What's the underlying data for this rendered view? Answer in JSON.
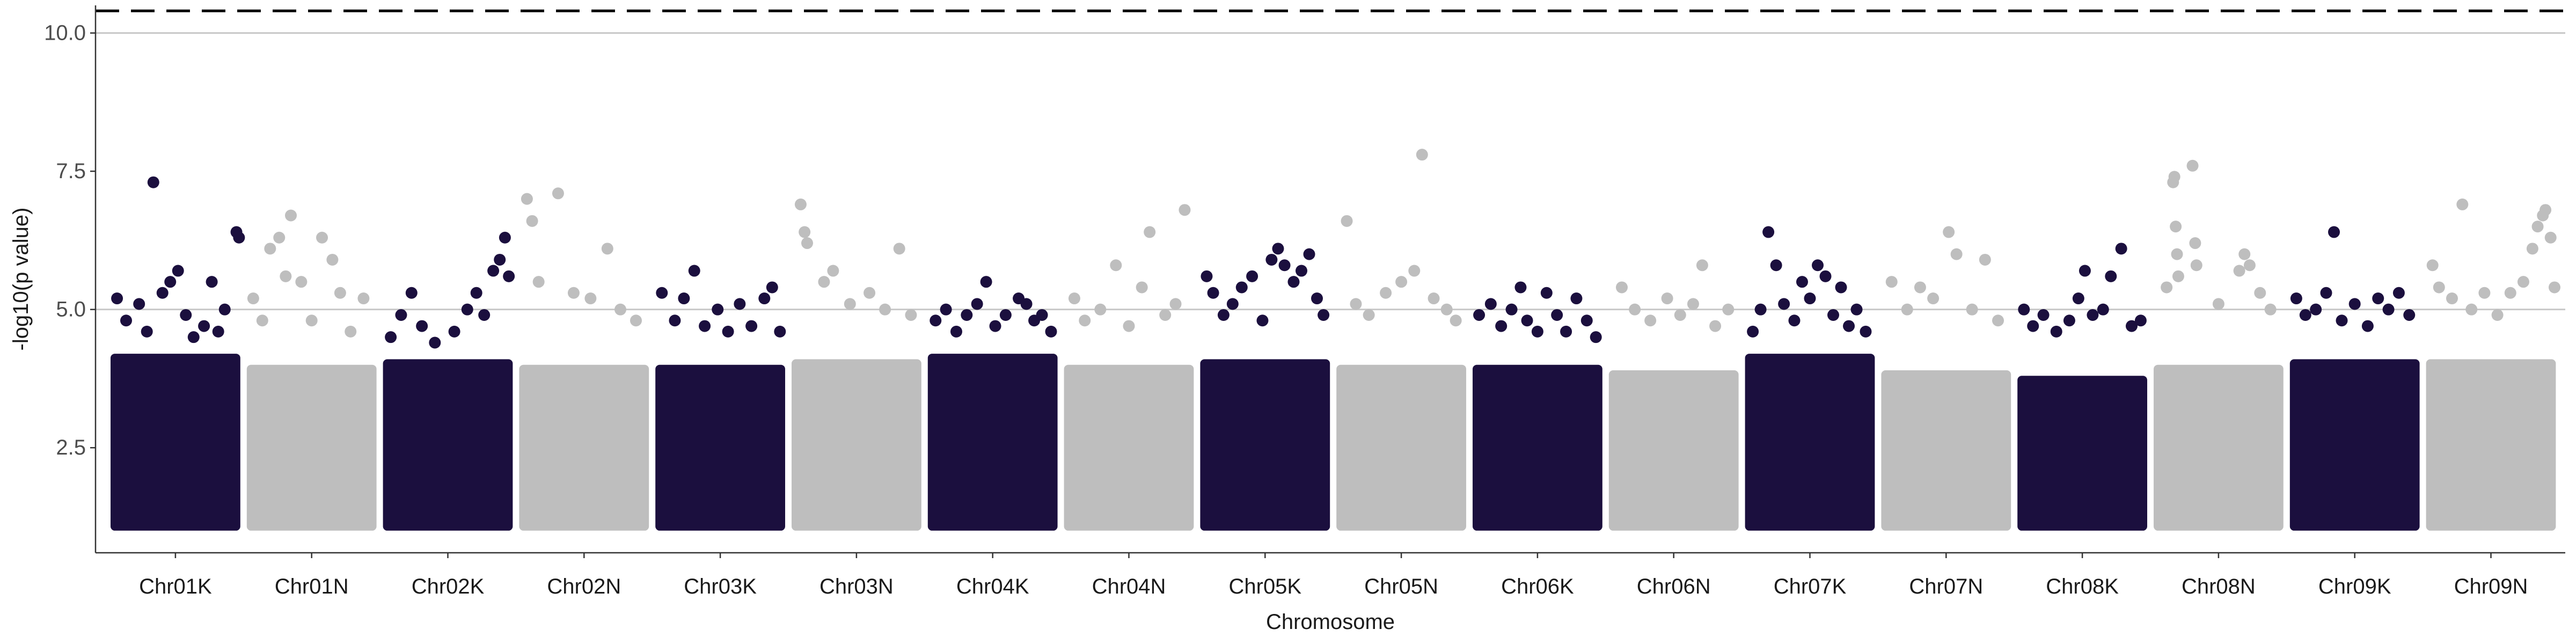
{
  "chart_data": {
    "type": "scatter",
    "title": "",
    "xlabel": "Chromosome",
    "ylabel": "-log10(p value)",
    "ylim": [
      0.6,
      10.5
    ],
    "y_ticks": [
      2.5,
      5.0,
      7.5,
      10.0
    ],
    "y_tick_labels": [
      "2.5",
      "5.0",
      "7.5",
      "10.0"
    ],
    "grid": "horizontal-major",
    "reference_lines": [
      {
        "y": 5.0,
        "style": "solid",
        "color": "#c8c8c8"
      },
      {
        "y": 10.0,
        "style": "solid",
        "color": "#c8c8c8"
      },
      {
        "y": 10.4,
        "style": "dashed",
        "color": "#000000"
      }
    ],
    "colors": {
      "odd": "#1b0f3e",
      "even": "#bebebe"
    },
    "chromosomes": [
      "Chr01K",
      "Chr01N",
      "Chr02K",
      "Chr02N",
      "Chr03K",
      "Chr03N",
      "Chr04K",
      "Chr04N",
      "Chr05K",
      "Chr05N",
      "Chr06K",
      "Chr06N",
      "Chr07K",
      "Chr07N",
      "Chr08K",
      "Chr08N",
      "Chr09K",
      "Chr09N"
    ],
    "band_top": [
      4.2,
      4.0,
      4.1,
      4.0,
      4.0,
      4.1,
      4.2,
      4.0,
      4.1,
      4.0,
      4.0,
      3.9,
      4.2,
      3.9,
      3.8,
      4.0,
      4.1,
      4.1
    ],
    "points": [
      {
        "chr": "Chr01K",
        "pos": 0.05,
        "y": 5.2
      },
      {
        "chr": "Chr01K",
        "pos": 0.12,
        "y": 4.8
      },
      {
        "chr": "Chr01K",
        "pos": 0.22,
        "y": 5.1
      },
      {
        "chr": "Chr01K",
        "pos": 0.28,
        "y": 4.6
      },
      {
        "chr": "Chr01K",
        "pos": 0.33,
        "y": 7.3
      },
      {
        "chr": "Chr01K",
        "pos": 0.4,
        "y": 5.3
      },
      {
        "chr": "Chr01K",
        "pos": 0.46,
        "y": 5.5
      },
      {
        "chr": "Chr01K",
        "pos": 0.52,
        "y": 5.7
      },
      {
        "chr": "Chr01K",
        "pos": 0.58,
        "y": 4.9
      },
      {
        "chr": "Chr01K",
        "pos": 0.64,
        "y": 4.5
      },
      {
        "chr": "Chr01K",
        "pos": 0.72,
        "y": 4.7
      },
      {
        "chr": "Chr01K",
        "pos": 0.78,
        "y": 5.5
      },
      {
        "chr": "Chr01K",
        "pos": 0.83,
        "y": 4.6
      },
      {
        "chr": "Chr01K",
        "pos": 0.88,
        "y": 5.0
      },
      {
        "chr": "Chr01K",
        "pos": 0.97,
        "y": 6.4
      },
      {
        "chr": "Chr01K",
        "pos": 0.99,
        "y": 6.3
      },
      {
        "chr": "Chr01N",
        "pos": 0.05,
        "y": 5.2
      },
      {
        "chr": "Chr01N",
        "pos": 0.12,
        "y": 4.8
      },
      {
        "chr": "Chr01N",
        "pos": 0.18,
        "y": 6.1
      },
      {
        "chr": "Chr01N",
        "pos": 0.25,
        "y": 6.3
      },
      {
        "chr": "Chr01N",
        "pos": 0.3,
        "y": 5.6
      },
      {
        "chr": "Chr01N",
        "pos": 0.34,
        "y": 6.7
      },
      {
        "chr": "Chr01N",
        "pos": 0.42,
        "y": 5.5
      },
      {
        "chr": "Chr01N",
        "pos": 0.5,
        "y": 4.8
      },
      {
        "chr": "Chr01N",
        "pos": 0.58,
        "y": 6.3
      },
      {
        "chr": "Chr01N",
        "pos": 0.66,
        "y": 5.9
      },
      {
        "chr": "Chr01N",
        "pos": 0.72,
        "y": 5.3
      },
      {
        "chr": "Chr01N",
        "pos": 0.8,
        "y": 4.6
      },
      {
        "chr": "Chr01N",
        "pos": 0.9,
        "y": 5.2
      },
      {
        "chr": "Chr02K",
        "pos": 0.06,
        "y": 4.5
      },
      {
        "chr": "Chr02K",
        "pos": 0.14,
        "y": 4.9
      },
      {
        "chr": "Chr02K",
        "pos": 0.22,
        "y": 5.3
      },
      {
        "chr": "Chr02K",
        "pos": 0.3,
        "y": 4.7
      },
      {
        "chr": "Chr02K",
        "pos": 0.4,
        "y": 4.4
      },
      {
        "chr": "Chr02K",
        "pos": 0.55,
        "y": 4.6
      },
      {
        "chr": "Chr02K",
        "pos": 0.65,
        "y": 5.0
      },
      {
        "chr": "Chr02K",
        "pos": 0.72,
        "y": 5.3
      },
      {
        "chr": "Chr02K",
        "pos": 0.78,
        "y": 4.9
      },
      {
        "chr": "Chr02K",
        "pos": 0.85,
        "y": 5.7
      },
      {
        "chr": "Chr02K",
        "pos": 0.9,
        "y": 5.9
      },
      {
        "chr": "Chr02K",
        "pos": 0.94,
        "y": 6.3
      },
      {
        "chr": "Chr02K",
        "pos": 0.97,
        "y": 5.6
      },
      {
        "chr": "Chr02N",
        "pos": 0.06,
        "y": 7.0
      },
      {
        "chr": "Chr02N",
        "pos": 0.1,
        "y": 6.6
      },
      {
        "chr": "Chr02N",
        "pos": 0.15,
        "y": 5.5
      },
      {
        "chr": "Chr02N",
        "pos": 0.3,
        "y": 7.1
      },
      {
        "chr": "Chr02N",
        "pos": 0.42,
        "y": 5.3
      },
      {
        "chr": "Chr02N",
        "pos": 0.55,
        "y": 5.2
      },
      {
        "chr": "Chr02N",
        "pos": 0.68,
        "y": 6.1
      },
      {
        "chr": "Chr02N",
        "pos": 0.78,
        "y": 5.0
      },
      {
        "chr": "Chr02N",
        "pos": 0.9,
        "y": 4.8
      },
      {
        "chr": "Chr03K",
        "pos": 0.05,
        "y": 5.3
      },
      {
        "chr": "Chr03K",
        "pos": 0.15,
        "y": 4.8
      },
      {
        "chr": "Chr03K",
        "pos": 0.22,
        "y": 5.2
      },
      {
        "chr": "Chr03K",
        "pos": 0.3,
        "y": 5.7
      },
      {
        "chr": "Chr03K",
        "pos": 0.38,
        "y": 4.7
      },
      {
        "chr": "Chr03K",
        "pos": 0.48,
        "y": 5.0
      },
      {
        "chr": "Chr03K",
        "pos": 0.56,
        "y": 4.6
      },
      {
        "chr": "Chr03K",
        "pos": 0.65,
        "y": 5.1
      },
      {
        "chr": "Chr03K",
        "pos": 0.74,
        "y": 4.7
      },
      {
        "chr": "Chr03K",
        "pos": 0.84,
        "y": 5.2
      },
      {
        "chr": "Chr03K",
        "pos": 0.9,
        "y": 5.4
      },
      {
        "chr": "Chr03K",
        "pos": 0.96,
        "y": 4.6
      },
      {
        "chr": "Chr03N",
        "pos": 0.07,
        "y": 6.9
      },
      {
        "chr": "Chr03N",
        "pos": 0.1,
        "y": 6.4
      },
      {
        "chr": "Chr03N",
        "pos": 0.12,
        "y": 6.2
      },
      {
        "chr": "Chr03N",
        "pos": 0.25,
        "y": 5.5
      },
      {
        "chr": "Chr03N",
        "pos": 0.32,
        "y": 5.7
      },
      {
        "chr": "Chr03N",
        "pos": 0.45,
        "y": 5.1
      },
      {
        "chr": "Chr03N",
        "pos": 0.6,
        "y": 5.3
      },
      {
        "chr": "Chr03N",
        "pos": 0.72,
        "y": 5.0
      },
      {
        "chr": "Chr03N",
        "pos": 0.83,
        "y": 6.1
      },
      {
        "chr": "Chr03N",
        "pos": 0.92,
        "y": 4.9
      },
      {
        "chr": "Chr04K",
        "pos": 0.06,
        "y": 4.8
      },
      {
        "chr": "Chr04K",
        "pos": 0.14,
        "y": 5.0
      },
      {
        "chr": "Chr04K",
        "pos": 0.22,
        "y": 4.6
      },
      {
        "chr": "Chr04K",
        "pos": 0.3,
        "y": 4.9
      },
      {
        "chr": "Chr04K",
        "pos": 0.38,
        "y": 5.1
      },
      {
        "chr": "Chr04K",
        "pos": 0.45,
        "y": 5.5
      },
      {
        "chr": "Chr04K",
        "pos": 0.52,
        "y": 4.7
      },
      {
        "chr": "Chr04K",
        "pos": 0.6,
        "y": 4.9
      },
      {
        "chr": "Chr04K",
        "pos": 0.7,
        "y": 5.2
      },
      {
        "chr": "Chr04K",
        "pos": 0.76,
        "y": 5.1
      },
      {
        "chr": "Chr04K",
        "pos": 0.82,
        "y": 4.8
      },
      {
        "chr": "Chr04K",
        "pos": 0.88,
        "y": 4.9
      },
      {
        "chr": "Chr04K",
        "pos": 0.95,
        "y": 4.6
      },
      {
        "chr": "Chr04N",
        "pos": 0.08,
        "y": 5.2
      },
      {
        "chr": "Chr04N",
        "pos": 0.16,
        "y": 4.8
      },
      {
        "chr": "Chr04N",
        "pos": 0.28,
        "y": 5.0
      },
      {
        "chr": "Chr04N",
        "pos": 0.4,
        "y": 5.8
      },
      {
        "chr": "Chr04N",
        "pos": 0.5,
        "y": 4.7
      },
      {
        "chr": "Chr04N",
        "pos": 0.6,
        "y": 5.4
      },
      {
        "chr": "Chr04N",
        "pos": 0.66,
        "y": 6.4
      },
      {
        "chr": "Chr04N",
        "pos": 0.78,
        "y": 4.9
      },
      {
        "chr": "Chr04N",
        "pos": 0.86,
        "y": 5.1
      },
      {
        "chr": "Chr04N",
        "pos": 0.93,
        "y": 6.8
      },
      {
        "chr": "Chr05K",
        "pos": 0.05,
        "y": 5.6
      },
      {
        "chr": "Chr05K",
        "pos": 0.1,
        "y": 5.3
      },
      {
        "chr": "Chr05K",
        "pos": 0.18,
        "y": 4.9
      },
      {
        "chr": "Chr05K",
        "pos": 0.25,
        "y": 5.1
      },
      {
        "chr": "Chr05K",
        "pos": 0.32,
        "y": 5.4
      },
      {
        "chr": "Chr05K",
        "pos": 0.4,
        "y": 5.6
      },
      {
        "chr": "Chr05K",
        "pos": 0.48,
        "y": 4.8
      },
      {
        "chr": "Chr05K",
        "pos": 0.55,
        "y": 5.9
      },
      {
        "chr": "Chr05K",
        "pos": 0.6,
        "y": 6.1
      },
      {
        "chr": "Chr05K",
        "pos": 0.65,
        "y": 5.8
      },
      {
        "chr": "Chr05K",
        "pos": 0.72,
        "y": 5.5
      },
      {
        "chr": "Chr05K",
        "pos": 0.78,
        "y": 5.7
      },
      {
        "chr": "Chr05K",
        "pos": 0.84,
        "y": 6.0
      },
      {
        "chr": "Chr05K",
        "pos": 0.9,
        "y": 5.2
      },
      {
        "chr": "Chr05K",
        "pos": 0.95,
        "y": 4.9
      },
      {
        "chr": "Chr05N",
        "pos": 0.08,
        "y": 6.6
      },
      {
        "chr": "Chr05N",
        "pos": 0.15,
        "y": 5.1
      },
      {
        "chr": "Chr05N",
        "pos": 0.25,
        "y": 4.9
      },
      {
        "chr": "Chr05N",
        "pos": 0.38,
        "y": 5.3
      },
      {
        "chr": "Chr05N",
        "pos": 0.5,
        "y": 5.5
      },
      {
        "chr": "Chr05N",
        "pos": 0.6,
        "y": 5.7
      },
      {
        "chr": "Chr05N",
        "pos": 0.66,
        "y": 7.8
      },
      {
        "chr": "Chr05N",
        "pos": 0.75,
        "y": 5.2
      },
      {
        "chr": "Chr05N",
        "pos": 0.85,
        "y": 5.0
      },
      {
        "chr": "Chr05N",
        "pos": 0.92,
        "y": 4.8
      },
      {
        "chr": "Chr06K",
        "pos": 0.05,
        "y": 4.9
      },
      {
        "chr": "Chr06K",
        "pos": 0.14,
        "y": 5.1
      },
      {
        "chr": "Chr06K",
        "pos": 0.22,
        "y": 4.7
      },
      {
        "chr": "Chr06K",
        "pos": 0.3,
        "y": 5.0
      },
      {
        "chr": "Chr06K",
        "pos": 0.37,
        "y": 5.4
      },
      {
        "chr": "Chr06K",
        "pos": 0.42,
        "y": 4.8
      },
      {
        "chr": "Chr06K",
        "pos": 0.5,
        "y": 4.6
      },
      {
        "chr": "Chr06K",
        "pos": 0.57,
        "y": 5.3
      },
      {
        "chr": "Chr06K",
        "pos": 0.65,
        "y": 4.9
      },
      {
        "chr": "Chr06K",
        "pos": 0.72,
        "y": 4.6
      },
      {
        "chr": "Chr06K",
        "pos": 0.8,
        "y": 5.2
      },
      {
        "chr": "Chr06K",
        "pos": 0.88,
        "y": 4.8
      },
      {
        "chr": "Chr06K",
        "pos": 0.95,
        "y": 4.5
      },
      {
        "chr": "Chr06N",
        "pos": 0.1,
        "y": 5.4
      },
      {
        "chr": "Chr06N",
        "pos": 0.2,
        "y": 5.0
      },
      {
        "chr": "Chr06N",
        "pos": 0.32,
        "y": 4.8
      },
      {
        "chr": "Chr06N",
        "pos": 0.45,
        "y": 5.2
      },
      {
        "chr": "Chr06N",
        "pos": 0.55,
        "y": 4.9
      },
      {
        "chr": "Chr06N",
        "pos": 0.65,
        "y": 5.1
      },
      {
        "chr": "Chr06N",
        "pos": 0.72,
        "y": 5.8
      },
      {
        "chr": "Chr06N",
        "pos": 0.82,
        "y": 4.7
      },
      {
        "chr": "Chr06N",
        "pos": 0.92,
        "y": 5.0
      },
      {
        "chr": "Chr07K",
        "pos": 0.06,
        "y": 4.6
      },
      {
        "chr": "Chr07K",
        "pos": 0.12,
        "y": 5.0
      },
      {
        "chr": "Chr07K",
        "pos": 0.18,
        "y": 6.4
      },
      {
        "chr": "Chr07K",
        "pos": 0.24,
        "y": 5.8
      },
      {
        "chr": "Chr07K",
        "pos": 0.3,
        "y": 5.1
      },
      {
        "chr": "Chr07K",
        "pos": 0.38,
        "y": 4.8
      },
      {
        "chr": "Chr07K",
        "pos": 0.44,
        "y": 5.5
      },
      {
        "chr": "Chr07K",
        "pos": 0.5,
        "y": 5.2
      },
      {
        "chr": "Chr07K",
        "pos": 0.56,
        "y": 5.8
      },
      {
        "chr": "Chr07K",
        "pos": 0.62,
        "y": 5.6
      },
      {
        "chr": "Chr07K",
        "pos": 0.68,
        "y": 4.9
      },
      {
        "chr": "Chr07K",
        "pos": 0.74,
        "y": 5.4
      },
      {
        "chr": "Chr07K",
        "pos": 0.8,
        "y": 4.7
      },
      {
        "chr": "Chr07K",
        "pos": 0.86,
        "y": 5.0
      },
      {
        "chr": "Chr07K",
        "pos": 0.93,
        "y": 4.6
      },
      {
        "chr": "Chr07N",
        "pos": 0.08,
        "y": 5.5
      },
      {
        "chr": "Chr07N",
        "pos": 0.2,
        "y": 5.0
      },
      {
        "chr": "Chr07N",
        "pos": 0.3,
        "y": 5.4
      },
      {
        "chr": "Chr07N",
        "pos": 0.4,
        "y": 5.2
      },
      {
        "chr": "Chr07N",
        "pos": 0.52,
        "y": 6.4
      },
      {
        "chr": "Chr07N",
        "pos": 0.58,
        "y": 6.0
      },
      {
        "chr": "Chr07N",
        "pos": 0.7,
        "y": 5.0
      },
      {
        "chr": "Chr07N",
        "pos": 0.8,
        "y": 5.9
      },
      {
        "chr": "Chr07N",
        "pos": 0.9,
        "y": 4.8
      },
      {
        "chr": "Chr08K",
        "pos": 0.05,
        "y": 5.0
      },
      {
        "chr": "Chr08K",
        "pos": 0.12,
        "y": 4.7
      },
      {
        "chr": "Chr08K",
        "pos": 0.2,
        "y": 4.9
      },
      {
        "chr": "Chr08K",
        "pos": 0.3,
        "y": 4.6
      },
      {
        "chr": "Chr08K",
        "pos": 0.4,
        "y": 4.8
      },
      {
        "chr": "Chr08K",
        "pos": 0.47,
        "y": 5.2
      },
      {
        "chr": "Chr08K",
        "pos": 0.52,
        "y": 5.7
      },
      {
        "chr": "Chr08K",
        "pos": 0.58,
        "y": 4.9
      },
      {
        "chr": "Chr08K",
        "pos": 0.66,
        "y": 5.0
      },
      {
        "chr": "Chr08K",
        "pos": 0.72,
        "y": 5.6
      },
      {
        "chr": "Chr08K",
        "pos": 0.8,
        "y": 6.1
      },
      {
        "chr": "Chr08K",
        "pos": 0.88,
        "y": 4.7
      },
      {
        "chr": "Chr08K",
        "pos": 0.95,
        "y": 4.8
      },
      {
        "chr": "Chr08N",
        "pos": 0.1,
        "y": 5.4
      },
      {
        "chr": "Chr08N",
        "pos": 0.15,
        "y": 7.3
      },
      {
        "chr": "Chr08N",
        "pos": 0.16,
        "y": 7.4
      },
      {
        "chr": "Chr08N",
        "pos": 0.17,
        "y": 6.5
      },
      {
        "chr": "Chr08N",
        "pos": 0.18,
        "y": 6.0
      },
      {
        "chr": "Chr08N",
        "pos": 0.19,
        "y": 5.6
      },
      {
        "chr": "Chr08N",
        "pos": 0.3,
        "y": 7.6
      },
      {
        "chr": "Chr08N",
        "pos": 0.32,
        "y": 6.2
      },
      {
        "chr": "Chr08N",
        "pos": 0.33,
        "y": 5.8
      },
      {
        "chr": "Chr08N",
        "pos": 0.5,
        "y": 5.1
      },
      {
        "chr": "Chr08N",
        "pos": 0.66,
        "y": 5.7
      },
      {
        "chr": "Chr08N",
        "pos": 0.7,
        "y": 6.0
      },
      {
        "chr": "Chr08N",
        "pos": 0.74,
        "y": 5.8
      },
      {
        "chr": "Chr08N",
        "pos": 0.82,
        "y": 5.3
      },
      {
        "chr": "Chr08N",
        "pos": 0.9,
        "y": 5.0
      },
      {
        "chr": "Chr09K",
        "pos": 0.05,
        "y": 5.2
      },
      {
        "chr": "Chr09K",
        "pos": 0.12,
        "y": 4.9
      },
      {
        "chr": "Chr09K",
        "pos": 0.2,
        "y": 5.0
      },
      {
        "chr": "Chr09K",
        "pos": 0.28,
        "y": 5.3
      },
      {
        "chr": "Chr09K",
        "pos": 0.34,
        "y": 6.4
      },
      {
        "chr": "Chr09K",
        "pos": 0.4,
        "y": 4.8
      },
      {
        "chr": "Chr09K",
        "pos": 0.5,
        "y": 5.1
      },
      {
        "chr": "Chr09K",
        "pos": 0.6,
        "y": 4.7
      },
      {
        "chr": "Chr09K",
        "pos": 0.68,
        "y": 5.2
      },
      {
        "chr": "Chr09K",
        "pos": 0.76,
        "y": 5.0
      },
      {
        "chr": "Chr09K",
        "pos": 0.84,
        "y": 5.3
      },
      {
        "chr": "Chr09K",
        "pos": 0.92,
        "y": 4.9
      },
      {
        "chr": "Chr09N",
        "pos": 0.05,
        "y": 5.8
      },
      {
        "chr": "Chr09N",
        "pos": 0.1,
        "y": 5.4
      },
      {
        "chr": "Chr09N",
        "pos": 0.2,
        "y": 5.2
      },
      {
        "chr": "Chr09N",
        "pos": 0.28,
        "y": 6.9
      },
      {
        "chr": "Chr09N",
        "pos": 0.35,
        "y": 5.0
      },
      {
        "chr": "Chr09N",
        "pos": 0.45,
        "y": 5.3
      },
      {
        "chr": "Chr09N",
        "pos": 0.55,
        "y": 4.9
      },
      {
        "chr": "Chr09N",
        "pos": 0.65,
        "y": 5.3
      },
      {
        "chr": "Chr09N",
        "pos": 0.75,
        "y": 5.5
      },
      {
        "chr": "Chr09N",
        "pos": 0.82,
        "y": 6.1
      },
      {
        "chr": "Chr09N",
        "pos": 0.86,
        "y": 6.5
      },
      {
        "chr": "Chr09N",
        "pos": 0.9,
        "y": 6.7
      },
      {
        "chr": "Chr09N",
        "pos": 0.92,
        "y": 6.8
      },
      {
        "chr": "Chr09N",
        "pos": 0.96,
        "y": 6.3
      },
      {
        "chr": "Chr09N",
        "pos": 0.99,
        "y": 5.4
      }
    ]
  }
}
